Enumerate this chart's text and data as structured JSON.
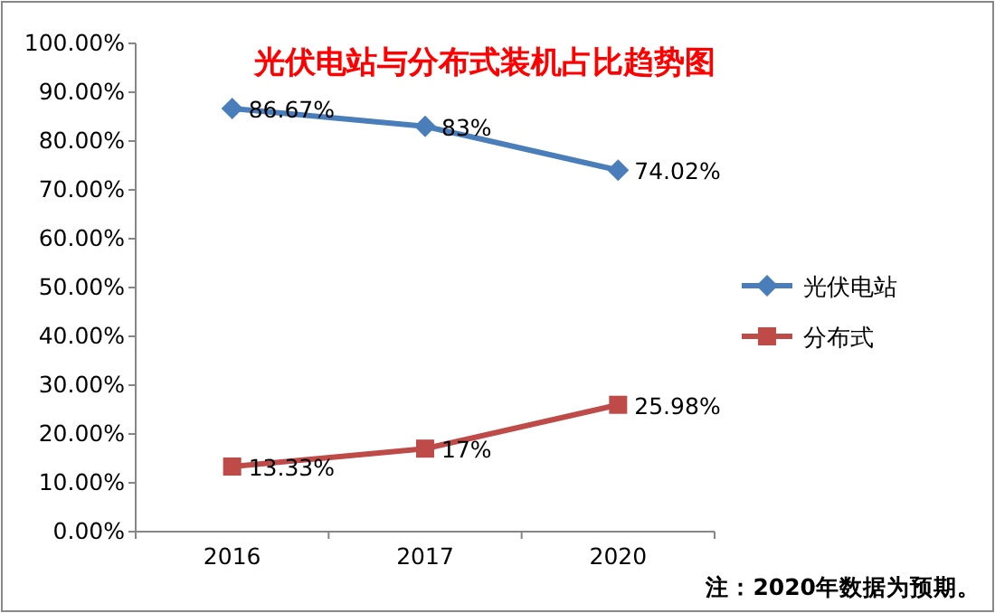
{
  "chart_data": {
    "type": "line",
    "title": "光伏电站与分布式装机占比趋势图",
    "categories": [
      "2016",
      "2017",
      "2020"
    ],
    "series": [
      {
        "name": "光伏电站",
        "color": "#4a7ebb",
        "marker": "diamond",
        "values": [
          86.67,
          83,
          74.02
        ],
        "value_labels": [
          "86.67%",
          "83%",
          "74.02%"
        ]
      },
      {
        "name": "分布式",
        "color": "#be4b48",
        "marker": "square",
        "values": [
          13.33,
          17,
          25.98
        ],
        "value_labels": [
          "13.33%",
          "17%",
          "25.98%"
        ]
      }
    ],
    "ylim": [
      0,
      100
    ],
    "yticks": [
      {
        "value": 0,
        "label": "0.00%"
      },
      {
        "value": 10,
        "label": "10.00%"
      },
      {
        "value": 20,
        "label": "20.00%"
      },
      {
        "value": 30,
        "label": "30.00%"
      },
      {
        "value": 40,
        "label": "40.00%"
      },
      {
        "value": 50,
        "label": "50.00%"
      },
      {
        "value": 60,
        "label": "60.00%"
      },
      {
        "value": 70,
        "label": "70.00%"
      },
      {
        "value": 80,
        "label": "80.00%"
      },
      {
        "value": 90,
        "label": "90.00%"
      },
      {
        "value": 100,
        "label": "100.00%"
      }
    ],
    "grid": false,
    "legend": "right",
    "line_style": "solid",
    "annotations": [
      "注：2020年数据为预期。"
    ]
  }
}
